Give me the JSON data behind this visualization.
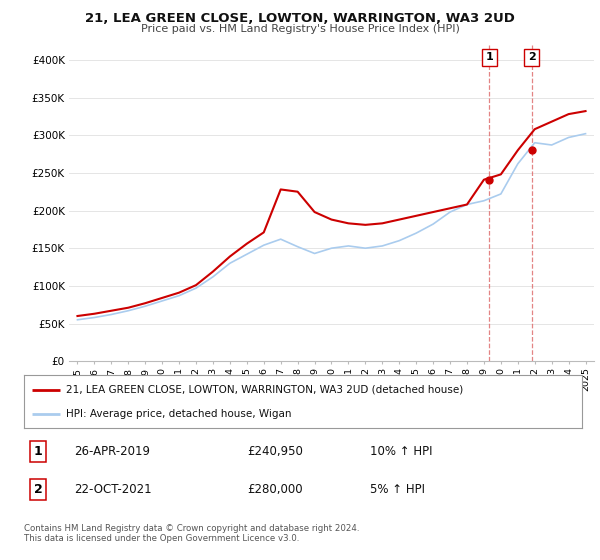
{
  "title": "21, LEA GREEN CLOSE, LOWTON, WARRINGTON, WA3 2UD",
  "subtitle": "Price paid vs. HM Land Registry's House Price Index (HPI)",
  "years": [
    1995,
    1996,
    1997,
    1998,
    1999,
    2000,
    2001,
    2002,
    2003,
    2004,
    2005,
    2006,
    2007,
    2008,
    2009,
    2010,
    2011,
    2012,
    2013,
    2014,
    2015,
    2016,
    2017,
    2018,
    2019,
    2020,
    2021,
    2022,
    2023,
    2024,
    2025
  ],
  "hpi_values": [
    55000,
    58000,
    62000,
    67000,
    73000,
    80000,
    87000,
    97000,
    112000,
    130000,
    142000,
    154000,
    162000,
    152000,
    143000,
    150000,
    153000,
    150000,
    153000,
    160000,
    170000,
    182000,
    198000,
    208000,
    213000,
    222000,
    262000,
    290000,
    287000,
    297000,
    302000
  ],
  "property_values": [
    60000,
    63000,
    67000,
    71000,
    77000,
    84000,
    91000,
    101000,
    119000,
    139000,
    156000,
    171000,
    228000,
    225000,
    198000,
    188000,
    183000,
    181000,
    183000,
    188000,
    193000,
    198000,
    203000,
    208000,
    240950,
    248000,
    280000,
    308000,
    318000,
    328000,
    332000
  ],
  "transaction1": {
    "year": 2019.32,
    "price": 240950,
    "label": "1",
    "date": "26-APR-2019",
    "price_str": "£240,950",
    "hpi_pct": "10% ↑ HPI"
  },
  "transaction2": {
    "year": 2021.81,
    "price": 280000,
    "label": "2",
    "date": "22-OCT-2021",
    "price_str": "£280,000",
    "hpi_pct": "5% ↑ HPI"
  },
  "ylim": [
    0,
    420000
  ],
  "yticks": [
    0,
    50000,
    100000,
    150000,
    200000,
    250000,
    300000,
    350000,
    400000
  ],
  "ytick_labels": [
    "£0",
    "£50K",
    "£100K",
    "£150K",
    "£200K",
    "£250K",
    "£300K",
    "£350K",
    "£400K"
  ],
  "xlim_left": 1994.5,
  "xlim_right": 2025.5,
  "property_color": "#cc0000",
  "hpi_color": "#aaccee",
  "dashed_color": "#dd6666",
  "legend_label_property": "21, LEA GREEN CLOSE, LOWTON, WARRINGTON, WA3 2UD (detached house)",
  "legend_label_hpi": "HPI: Average price, detached house, Wigan",
  "footnote": "Contains HM Land Registry data © Crown copyright and database right 2024.\nThis data is licensed under the Open Government Licence v3.0.",
  "bg_color": "#ffffff",
  "grid_color": "#e0e0e0"
}
